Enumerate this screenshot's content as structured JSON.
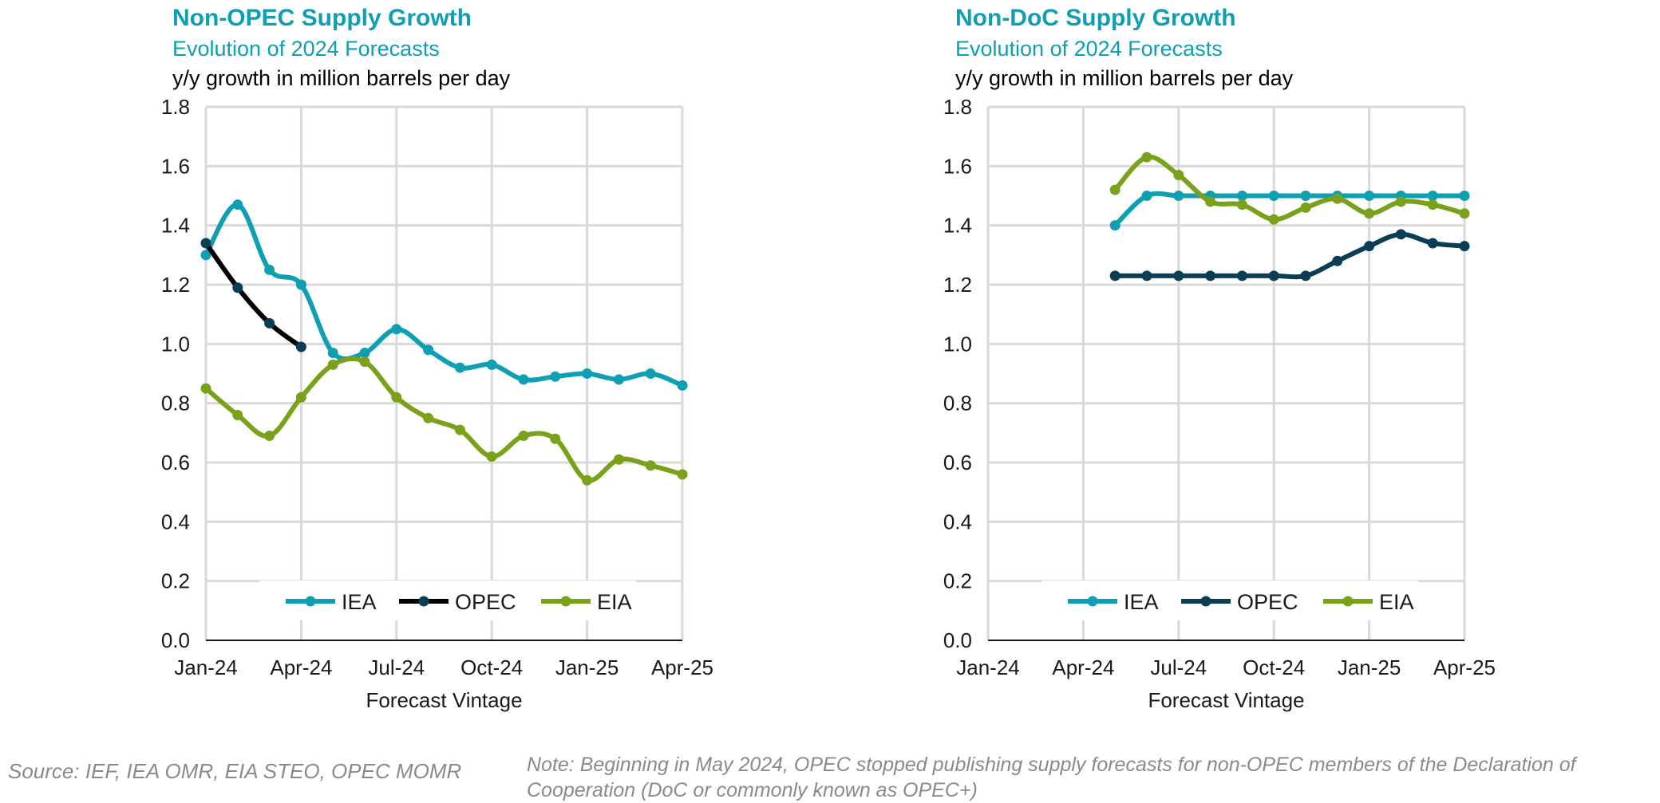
{
  "charts": [
    {
      "title": "Non-OPEC Supply Growth",
      "subtitle": "Evolution of 2024 Forecasts",
      "units": "y/y growth in million barrels per day",
      "xlabel": "Forecast Vintage",
      "x_ticks": [
        "Jan-24",
        "Apr-24",
        "Jul-24",
        "Oct-24",
        "Jan-25",
        "Apr-25"
      ],
      "y_ticks": [
        "0.0",
        "0.2",
        "0.4",
        "0.6",
        "0.8",
        "1.0",
        "1.2",
        "1.4",
        "1.6",
        "1.8"
      ]
    },
    {
      "title": "Non-DoC Supply Growth",
      "subtitle": "Evolution of 2024 Forecasts",
      "units": "y/y growth in million barrels per day",
      "xlabel": "Forecast Vintage",
      "x_ticks": [
        "Jan-24",
        "Apr-24",
        "Jul-24",
        "Oct-24",
        "Jan-25",
        "Apr-25"
      ],
      "y_ticks": [
        "0.0",
        "0.2",
        "0.4",
        "0.6",
        "0.8",
        "1.0",
        "1.2",
        "1.4",
        "1.6",
        "1.8"
      ]
    }
  ],
  "chart_data": [
    {
      "type": "line",
      "title": "Non-OPEC Supply Growth",
      "subtitle": "Evolution of 2024 Forecasts",
      "ylabel": "y/y growth in million barrels per day",
      "xlabel": "Forecast Vintage",
      "x_months": [
        "Jan-24",
        "Feb-24",
        "Mar-24",
        "Apr-24",
        "May-24",
        "Jun-24",
        "Jul-24",
        "Aug-24",
        "Sep-24",
        "Oct-24",
        "Nov-24",
        "Dec-24",
        "Jan-25",
        "Feb-25",
        "Mar-25",
        "Apr-25"
      ],
      "ylim": [
        0,
        1.8
      ],
      "grid": true,
      "legend": "bottom-center",
      "series": [
        {
          "name": "IEA",
          "color": "#0f9fb3",
          "values": [
            1.3,
            1.47,
            1.25,
            1.2,
            0.97,
            0.97,
            1.05,
            0.98,
            0.92,
            0.93,
            0.88,
            0.89,
            0.9,
            0.88,
            0.9,
            0.86
          ]
        },
        {
          "name": "OPEC",
          "color": "#000000",
          "marker_color": "#0b3d55",
          "values": [
            1.34,
            1.19,
            1.07,
            0.99,
            null,
            null,
            null,
            null,
            null,
            null,
            null,
            null,
            null,
            null,
            null,
            null
          ]
        },
        {
          "name": "EIA",
          "color": "#7aa11a",
          "values": [
            0.85,
            0.76,
            0.69,
            0.82,
            0.93,
            0.94,
            0.82,
            0.75,
            0.71,
            0.62,
            0.69,
            0.68,
            0.54,
            0.61,
            0.59,
            0.56
          ]
        }
      ]
    },
    {
      "type": "line",
      "title": "Non-DoC Supply Growth",
      "subtitle": "Evolution of 2024 Forecasts",
      "ylabel": "y/y growth in million barrels per day",
      "xlabel": "Forecast Vintage",
      "x_months": [
        "Jan-24",
        "Feb-24",
        "Mar-24",
        "Apr-24",
        "May-24",
        "Jun-24",
        "Jul-24",
        "Aug-24",
        "Sep-24",
        "Oct-24",
        "Nov-24",
        "Dec-24",
        "Jan-25",
        "Feb-25",
        "Mar-25",
        "Apr-25"
      ],
      "ylim": [
        0,
        1.8
      ],
      "grid": true,
      "legend": "bottom-center",
      "series": [
        {
          "name": "IEA",
          "color": "#0f9fb3",
          "values": [
            null,
            null,
            null,
            null,
            1.4,
            1.5,
            1.5,
            1.5,
            1.5,
            1.5,
            1.5,
            1.5,
            1.5,
            1.5,
            1.5,
            1.5
          ]
        },
        {
          "name": "OPEC",
          "color": "#0b3d55",
          "values": [
            null,
            null,
            null,
            null,
            1.23,
            1.23,
            1.23,
            1.23,
            1.23,
            1.23,
            1.23,
            1.28,
            1.33,
            1.37,
            1.34,
            1.33
          ]
        },
        {
          "name": "EIA",
          "color": "#7aa11a",
          "values": [
            null,
            null,
            null,
            null,
            1.52,
            1.63,
            1.57,
            1.48,
            1.47,
            1.42,
            1.46,
            1.49,
            1.44,
            1.48,
            1.47,
            1.44
          ]
        }
      ]
    }
  ],
  "footer": {
    "source": "Source: IEF, IEA OMR, EIA STEO, OPEC MOMR",
    "note": "Note: Beginning in May 2024, OPEC stopped publishing supply forecasts for non-OPEC members of the Declaration of Cooperation (DoC or commonly known as OPEC+)"
  }
}
